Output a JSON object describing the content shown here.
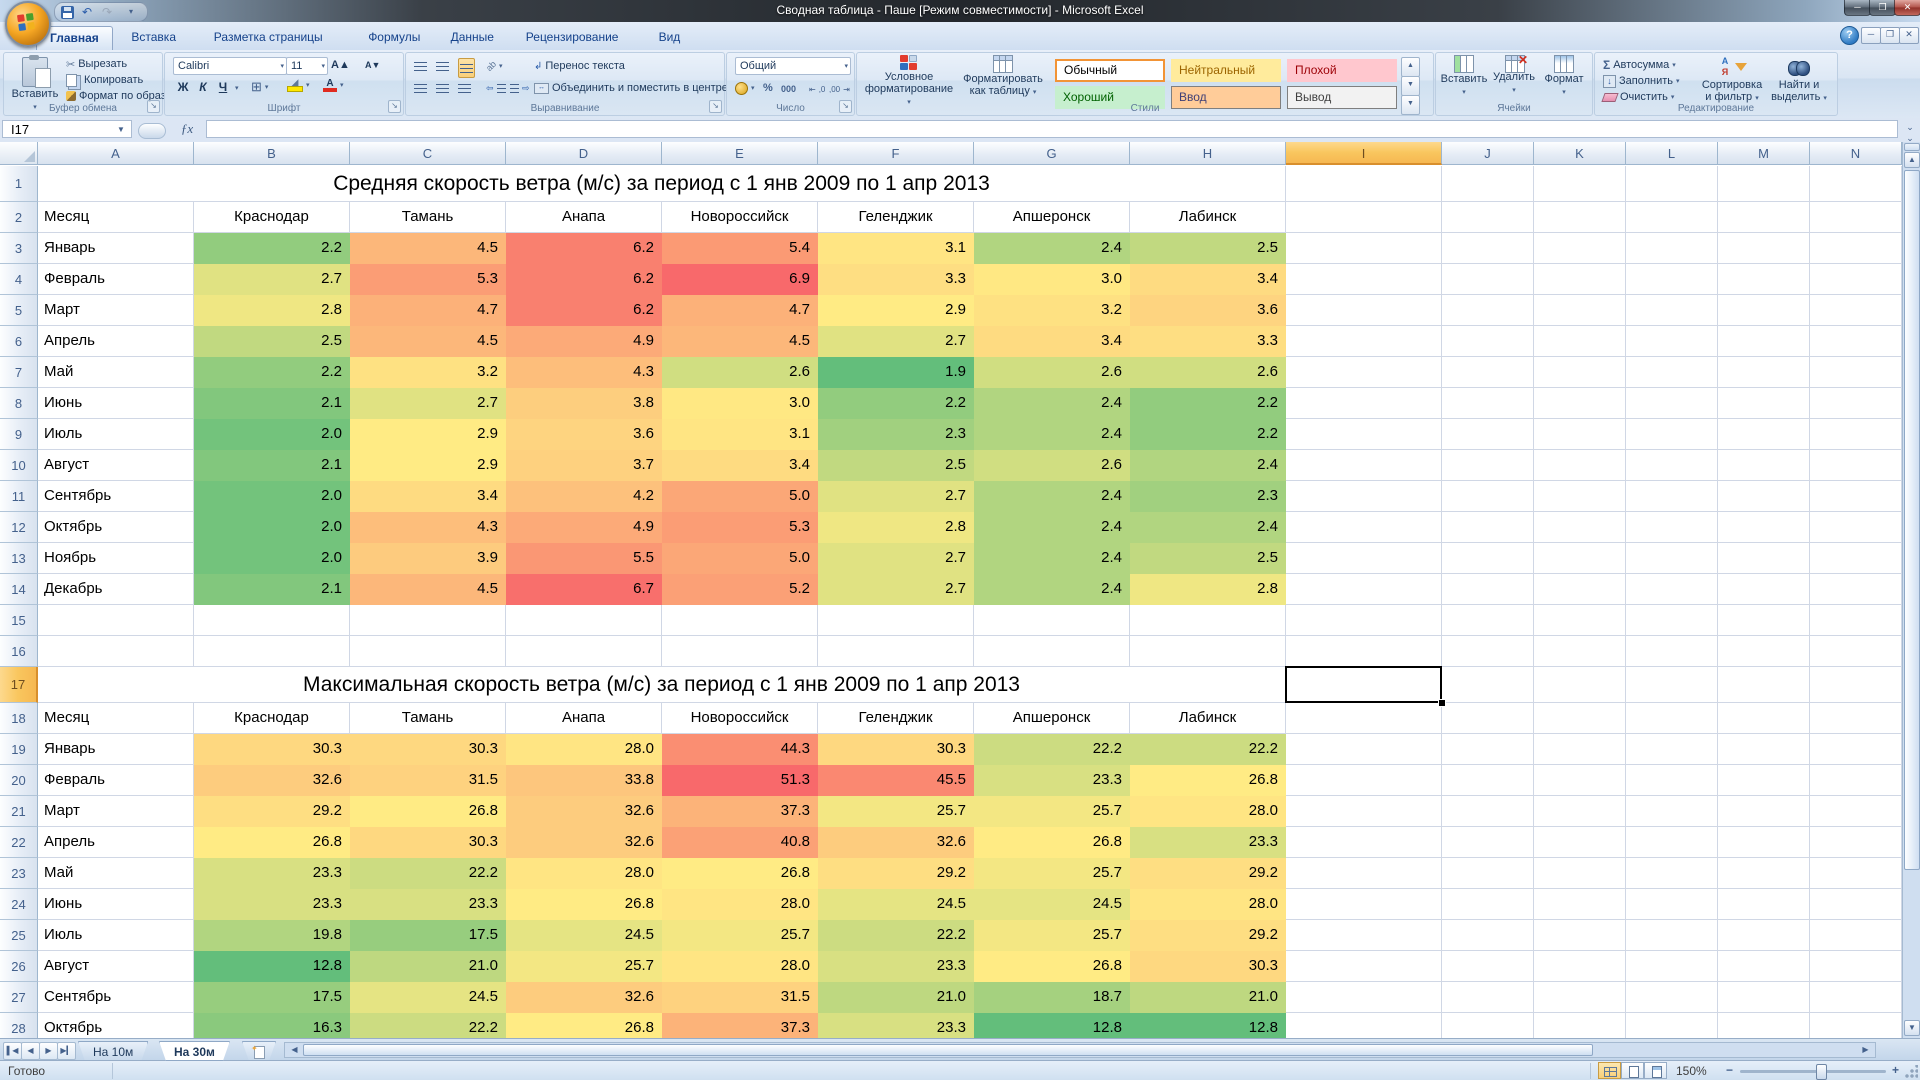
{
  "window": {
    "title": "Сводная таблица - Паше  [Режим совместимости] - Microsoft Excel",
    "help_label": "?"
  },
  "ribbon": {
    "tabs": [
      {
        "label": "Главная",
        "active": true
      },
      {
        "label": "Вставка",
        "active": false
      },
      {
        "label": "Разметка страницы",
        "active": false
      },
      {
        "label": "Формулы",
        "active": false
      },
      {
        "label": "Данные",
        "active": false
      },
      {
        "label": "Рецензирование",
        "active": false
      },
      {
        "label": "Вид",
        "active": false
      }
    ],
    "clipboard": {
      "group_label": "Буфер обмена",
      "paste": "Вставить",
      "cut": "Вырезать",
      "copy": "Копировать",
      "format_painter": "Формат по образцу"
    },
    "font": {
      "group_label": "Шрифт",
      "family": "Calibri",
      "size": "11",
      "bold": "Ж",
      "italic": "К",
      "underline": "Ч"
    },
    "alignment": {
      "group_label": "Выравнивание",
      "wrap_text": "Перенос текста",
      "merge_center": "Объединить и поместить в центре"
    },
    "number": {
      "group_label": "Число",
      "format": "Общий",
      "percent": "%",
      "thousands": "000",
      "dec_inc": ",0",
      "dec_dec": ",00"
    },
    "styles": {
      "group_label": "Стили",
      "conditional_line1": "Условное",
      "conditional_line2": "форматирование",
      "format_table_line1": "Форматировать",
      "format_table_line2": "как таблицу",
      "gallery": [
        {
          "name": "Обычный",
          "bg": "#FFFFFF",
          "color": "#000000",
          "selected": true,
          "bordered": false
        },
        {
          "name": "Нейтральный",
          "bg": "#FFEB9C",
          "color": "#9C6500",
          "selected": false,
          "bordered": false
        },
        {
          "name": "Плохой",
          "bg": "#FFC7CE",
          "color": "#9C0006",
          "selected": false,
          "bordered": false
        },
        {
          "name": "Хороший",
          "bg": "#C6EFCE",
          "color": "#006100",
          "selected": false,
          "bordered": false
        },
        {
          "name": "Ввод",
          "bg": "#FFCC99",
          "color": "#3F3F76",
          "selected": false,
          "bordered": true
        },
        {
          "name": "Вывод",
          "bg": "#F2F2F2",
          "color": "#3F3F3F",
          "selected": false,
          "bordered": true
        }
      ]
    },
    "cells": {
      "group_label": "Ячейки",
      "insert": "Вставить",
      "delete": "Удалить",
      "format": "Формат"
    },
    "editing": {
      "group_label": "Редактирование",
      "autosum": "Автосумма",
      "fill": "Заполнить",
      "clear": "Очистить",
      "sort_line1": "Сортировка",
      "sort_line2": "и фильтр",
      "find_line1": "Найти и",
      "find_line2": "выделить"
    }
  },
  "formula_bar": {
    "name_box": "I17",
    "fx": "ƒx"
  },
  "sheet": {
    "column_letters": [
      "A",
      "B",
      "C",
      "D",
      "E",
      "F",
      "G",
      "H",
      "I",
      "J",
      "K",
      "L",
      "M",
      "N"
    ],
    "visible_rows": 28,
    "active_cell": {
      "col": "I",
      "row": 17
    },
    "color_scale": {
      "min": "#63BE7B",
      "mid": "#FFEB84",
      "max": "#F8696B"
    },
    "tables": [
      {
        "title": "Средняя скорость ветра (м/с) за период с 1 янв 2009 по 1 апр 2013",
        "title_row": 1,
        "header_row": 2,
        "data_start_row": 3,
        "headers": [
          "Месяц",
          "Краснодар",
          "Тамань",
          "Анапа",
          "Новороссийск",
          "Геленджик",
          "Апшеронск",
          "Лабинск"
        ],
        "rows": [
          {
            "month": "Январь",
            "values": [
              "2.2",
              "4.5",
              "6.2",
              "5.4",
              "3.1",
              "2.4",
              "2.5"
            ]
          },
          {
            "month": "Февраль",
            "values": [
              "2.7",
              "5.3",
              "6.2",
              "6.9",
              "3.3",
              "3.0",
              "3.4"
            ]
          },
          {
            "month": "Март",
            "values": [
              "2.8",
              "4.7",
              "6.2",
              "4.7",
              "2.9",
              "3.2",
              "3.6"
            ]
          },
          {
            "month": "Апрель",
            "values": [
              "2.5",
              "4.5",
              "4.9",
              "4.5",
              "2.7",
              "3.4",
              "3.3"
            ]
          },
          {
            "month": "Май",
            "values": [
              "2.2",
              "3.2",
              "4.3",
              "2.6",
              "1.9",
              "2.6",
              "2.6"
            ]
          },
          {
            "month": "Июнь",
            "values": [
              "2.1",
              "2.7",
              "3.8",
              "3.0",
              "2.2",
              "2.4",
              "2.2"
            ]
          },
          {
            "month": "Июль",
            "values": [
              "2.0",
              "2.9",
              "3.6",
              "3.1",
              "2.3",
              "2.4",
              "2.2"
            ]
          },
          {
            "month": "Август",
            "values": [
              "2.1",
              "2.9",
              "3.7",
              "3.4",
              "2.5",
              "2.6",
              "2.4"
            ]
          },
          {
            "month": "Сентябрь",
            "values": [
              "2.0",
              "3.4",
              "4.2",
              "5.0",
              "2.7",
              "2.4",
              "2.3"
            ]
          },
          {
            "month": "Октябрь",
            "values": [
              "2.0",
              "4.3",
              "4.9",
              "5.3",
              "2.8",
              "2.4",
              "2.4"
            ]
          },
          {
            "month": "Ноябрь",
            "values": [
              "2.0",
              "3.9",
              "5.5",
              "5.0",
              "2.7",
              "2.4",
              "2.5"
            ]
          },
          {
            "month": "Декабрь",
            "values": [
              "2.1",
              "4.5",
              "6.7",
              "5.2",
              "2.7",
              "2.4",
              "2.8"
            ]
          }
        ]
      },
      {
        "title": "Максимальная скорость ветра (м/с) за период с 1 янв 2009 по 1 апр 2013",
        "title_row": 17,
        "header_row": 18,
        "data_start_row": 19,
        "headers": [
          "Месяц",
          "Краснодар",
          "Тамань",
          "Анапа",
          "Новороссийск",
          "Геленджик",
          "Апшеронск",
          "Лабинск"
        ],
        "rows": [
          {
            "month": "Январь",
            "values": [
              "30.3",
              "30.3",
              "28.0",
              "44.3",
              "30.3",
              "22.2",
              "22.2"
            ]
          },
          {
            "month": "Февраль",
            "values": [
              "32.6",
              "31.5",
              "33.8",
              "51.3",
              "45.5",
              "23.3",
              "26.8"
            ]
          },
          {
            "month": "Март",
            "values": [
              "29.2",
              "26.8",
              "32.6",
              "37.3",
              "25.7",
              "25.7",
              "28.0"
            ]
          },
          {
            "month": "Апрель",
            "values": [
              "26.8",
              "30.3",
              "32.6",
              "40.8",
              "32.6",
              "26.8",
              "23.3"
            ]
          },
          {
            "month": "Май",
            "values": [
              "23.3",
              "22.2",
              "28.0",
              "26.8",
              "29.2",
              "25.7",
              "29.2"
            ]
          },
          {
            "month": "Июнь",
            "values": [
              "23.3",
              "23.3",
              "26.8",
              "28.0",
              "24.5",
              "24.5",
              "28.0"
            ]
          },
          {
            "month": "Июль",
            "values": [
              "19.8",
              "17.5",
              "24.5",
              "25.7",
              "22.2",
              "25.7",
              "29.2"
            ]
          },
          {
            "month": "Август",
            "values": [
              "12.8",
              "21.0",
              "25.7",
              "28.0",
              "23.3",
              "26.8",
              "30.3"
            ]
          },
          {
            "month": "Сентябрь",
            "values": [
              "17.5",
              "24.5",
              "32.6",
              "31.5",
              "21.0",
              "18.7",
              "21.0"
            ]
          },
          {
            "month": "Октябрь",
            "values": [
              "16.3",
              "22.2",
              "26.8",
              "37.3",
              "23.3",
              "12.8",
              "12.8"
            ]
          }
        ]
      }
    ]
  },
  "sheet_tabs": {
    "tabs": [
      {
        "label": "На 10м",
        "active": false
      },
      {
        "label": "На 30м",
        "active": true
      }
    ]
  },
  "status_bar": {
    "mode": "Готово",
    "zoom": "150%"
  }
}
